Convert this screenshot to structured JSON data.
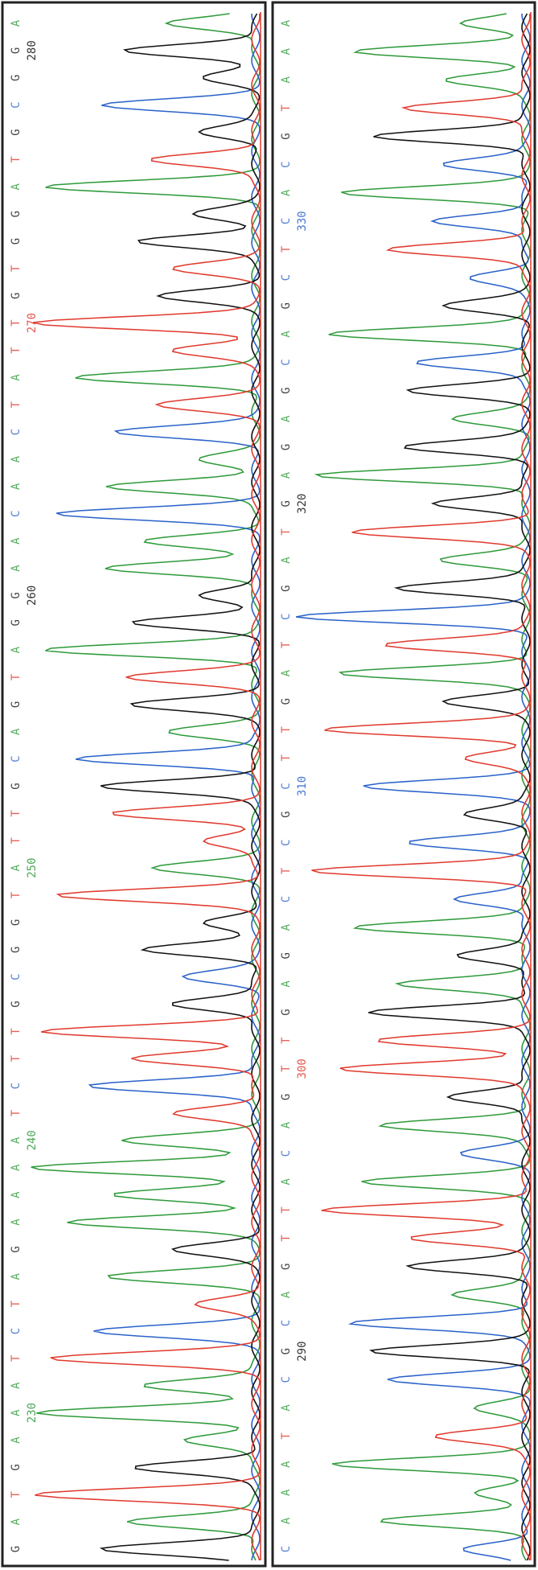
{
  "panels": [
    {
      "bases": [
        "G",
        "A",
        "T",
        "G",
        "A",
        "A",
        "A",
        "T",
        "C",
        "T",
        "A",
        "G",
        "A",
        "A",
        "A",
        "A",
        "T",
        "C",
        "T",
        "T",
        "G",
        "C",
        "G",
        "G",
        "T",
        "A",
        "T",
        "T",
        "G",
        "C",
        "A",
        "G",
        "T",
        "A",
        "G",
        "G",
        "A",
        "A",
        "C",
        "A",
        "A",
        "C",
        "T",
        "A",
        "T",
        "T",
        "G",
        "T",
        "G",
        "G",
        "A",
        "T",
        "G",
        "C",
        "G",
        "G",
        "A"
      ],
      "positions": [
        230,
        240,
        250,
        260,
        270,
        280
      ]
    },
    {
      "bases": [
        "C",
        "A",
        "A",
        "A",
        "T",
        "A",
        "C",
        "G",
        "C",
        "A",
        "G",
        "T",
        "T",
        "A",
        "C",
        "A",
        "G",
        "T",
        "T",
        "G",
        "A",
        "G",
        "A",
        "C",
        "T",
        "C",
        "G",
        "C",
        "T",
        "T",
        "G",
        "A",
        "T",
        "C",
        "G",
        "A",
        "T",
        "G",
        "A",
        "G",
        "A",
        "G",
        "C",
        "A",
        "G",
        "C",
        "T",
        "C",
        "A",
        "C",
        "G",
        "T",
        "A",
        "A",
        "A"
      ],
      "positions": [
        290,
        300,
        310,
        320,
        330
      ]
    }
  ]
}
